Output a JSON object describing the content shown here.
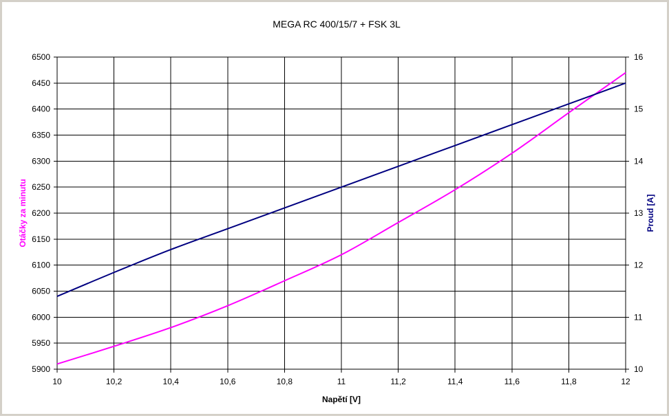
{
  "chart_data": {
    "type": "line",
    "title": "MEGA RC 400/15/7 + FSK 3L",
    "xlabel": "Napětí [V]",
    "ylabel_left": "Otáčky za minutu",
    "ylabel_right": "Proud [A]",
    "xlim": [
      10,
      12
    ],
    "ylim_left": [
      5900,
      6500
    ],
    "ylim_right": [
      10,
      16
    ],
    "x_ticks": [
      "10",
      "10,2",
      "10,4",
      "10,6",
      "10,8",
      "11",
      "11,2",
      "11,4",
      "11,6",
      "11,8",
      "12"
    ],
    "y_left_ticks": [
      "5900",
      "5950",
      "6000",
      "6050",
      "6100",
      "6150",
      "6200",
      "6250",
      "6300",
      "6350",
      "6400",
      "6450",
      "6500"
    ],
    "y_right_ticks": [
      "10",
      "11",
      "12",
      "13",
      "14",
      "15",
      "16"
    ],
    "grid": true,
    "series": [
      {
        "name": "Otáčky za minutu",
        "axis": "left",
        "color": "#ff00ff",
        "x": [
          10,
          10.2,
          10.4,
          10.6,
          10.8,
          11,
          11.2,
          11.4,
          11.6,
          11.8,
          12
        ],
        "values": [
          5910,
          5944,
          5980,
          6022,
          6070,
          6120,
          6182,
          6245,
          6315,
          6393,
          6470
        ]
      },
      {
        "name": "Proud [A]",
        "axis": "right",
        "color": "#000080",
        "x": [
          10,
          10.2,
          10.4,
          10.6,
          10.8,
          11,
          11.2,
          11.4,
          11.6,
          11.8,
          12
        ],
        "values": [
          11.4,
          11.86,
          12.3,
          12.7,
          13.1,
          13.5,
          13.9,
          14.3,
          14.7,
          15.1,
          15.5
        ]
      }
    ]
  }
}
